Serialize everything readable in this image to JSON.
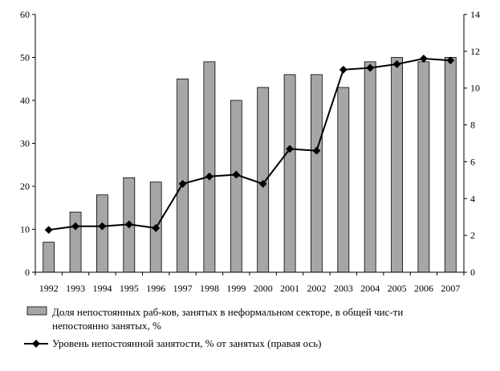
{
  "chart_data": {
    "type": "bar",
    "categories": [
      "1992",
      "1993",
      "1994",
      "1995",
      "1996",
      "1997",
      "1998",
      "1999",
      "2000",
      "2001",
      "2002",
      "2003",
      "2004",
      "2005",
      "2006",
      "2007"
    ],
    "series": [
      {
        "name": "Доля непостоянных раб-ков, занятых в неформальном секторе, в общей чис-ти непостоянно занятых, %",
        "name_lines": [
          "Доля непостоянных раб-ков, занятых в неформальном секторе, в общей чис-ти",
          "непостоянно занятых, %"
        ],
        "type": "bar",
        "axis": "left",
        "color": "#a6a6a6",
        "values": [
          7,
          14,
          18,
          22,
          21,
          45,
          49,
          40,
          43,
          46,
          46,
          43,
          49,
          50,
          49,
          50
        ]
      },
      {
        "name": "Уровень непостоянной занятости, % от занятых (правая ось)",
        "type": "line",
        "axis": "right",
        "color": "#000000",
        "values": [
          2.3,
          2.5,
          2.5,
          2.6,
          2.4,
          4.8,
          5.2,
          5.3,
          4.8,
          6.7,
          6.6,
          11.0,
          11.1,
          11.3,
          11.6,
          11.5
        ]
      }
    ],
    "y_left": {
      "ylim": [
        0,
        60
      ],
      "ticks": [
        "0",
        "10",
        "20",
        "30",
        "40",
        "50",
        "60"
      ]
    },
    "y_right": {
      "ylim": [
        0,
        14
      ],
      "ticks": [
        "0",
        "2",
        "4",
        "6",
        "8",
        "10",
        "12",
        "14"
      ]
    },
    "grid": false,
    "legend_position": "bottom"
  }
}
